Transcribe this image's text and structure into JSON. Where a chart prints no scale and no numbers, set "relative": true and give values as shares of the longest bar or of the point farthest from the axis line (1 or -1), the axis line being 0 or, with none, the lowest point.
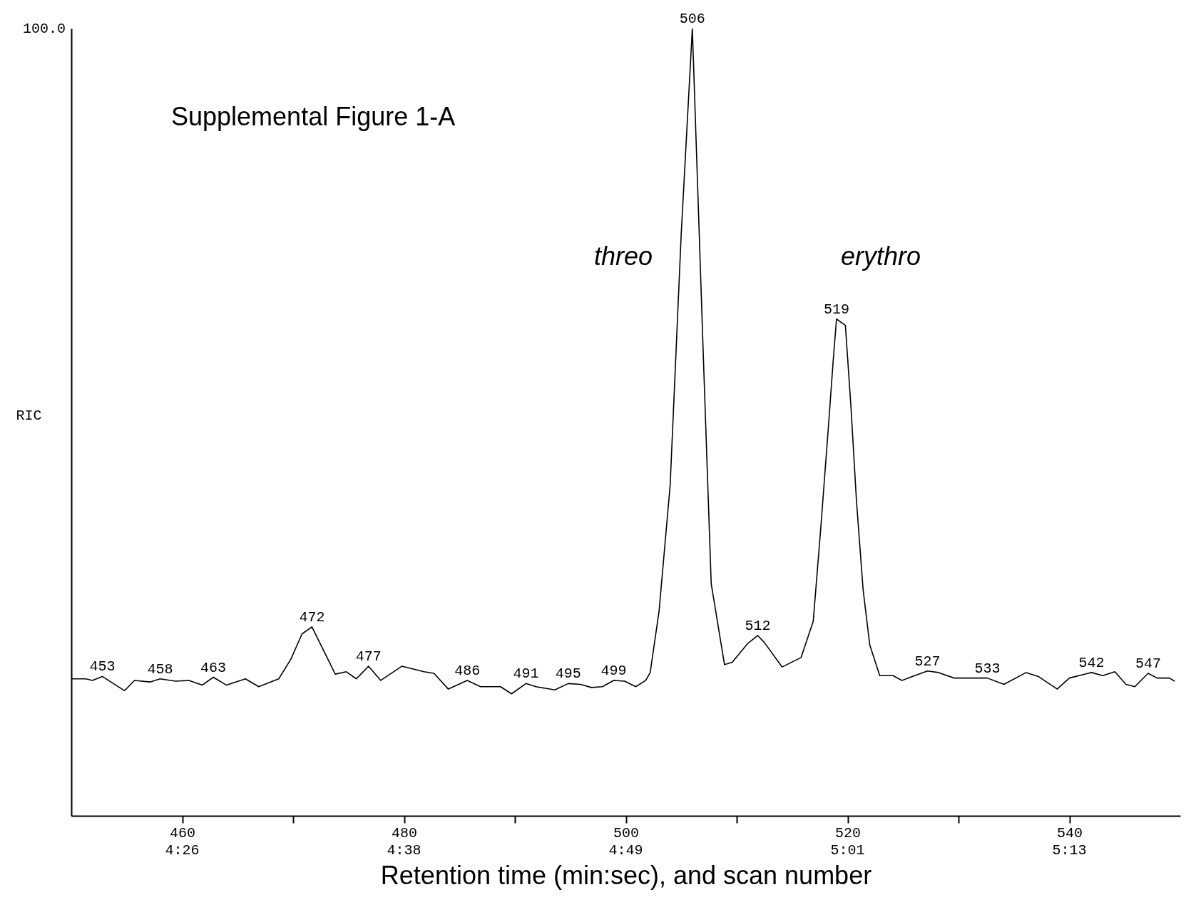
{
  "chart_data": {
    "type": "line",
    "relative": true,
    "xlabel": "Retention time (min:sec), and scan number",
    "ylabel": "RIC",
    "xlim": [
      450,
      550
    ],
    "xticks": [
      460,
      {
        "value": 470,
        "label": null
      },
      480,
      {
        "value": 490,
        "label": null
      },
      500,
      {
        "value": 510,
        "label": null
      },
      520,
      {
        "value": 530,
        "label": null
      },
      540
    ],
    "x": [
      450,
      451.3,
      451.9,
      452.8,
      454.8,
      455.7,
      457.1,
      458,
      459.4,
      460.6,
      461.8,
      462.8,
      464,
      465.7,
      466.9,
      468.7,
      469.8,
      470.8,
      471.7,
      473.8,
      474.8,
      475.7,
      476.8,
      477.9,
      479.8,
      481.8,
      482.7,
      484,
      485.7,
      486.9,
      488.7,
      489.7,
      491,
      491.9,
      493.6,
      494.8,
      495.9,
      496.9,
      497.9,
      498.9,
      499.9,
      500.9,
      501.8,
      502.2,
      503,
      504,
      505,
      506,
      507,
      507.7,
      508.9,
      509.6,
      511,
      511.9,
      512.5,
      514.1,
      515.8,
      516.9,
      517.6,
      518.3,
      518.7,
      519,
      519.8,
      520.3,
      520.8,
      521.4,
      522,
      522.9,
      524.1,
      524.9,
      527.2,
      528.2,
      529.6,
      532.6,
      534.1,
      536.1,
      537.2,
      538.9,
      540,
      542,
      543,
      544.1,
      545.1,
      545.9,
      547.1,
      547.9,
      549,
      549.5
    ],
    "series": [
      {
        "color": "#000000",
        "values": [
          0.174,
          0.174,
          0.172,
          0.177,
          0.159,
          0.172,
          0.17,
          0.174,
          0.171,
          0.172,
          0.166,
          0.176,
          0.166,
          0.174,
          0.164,
          0.174,
          0.199,
          0.231,
          0.24,
          0.18,
          0.183,
          0.174,
          0.19,
          0.172,
          0.19,
          0.183,
          0.181,
          0.161,
          0.172,
          0.164,
          0.164,
          0.155,
          0.168,
          0.164,
          0.16,
          0.168,
          0.167,
          0.163,
          0.164,
          0.172,
          0.171,
          0.164,
          0.172,
          0.182,
          0.26,
          0.42,
          0.74,
          1.0,
          0.58,
          0.295,
          0.192,
          0.195,
          0.219,
          0.229,
          0.22,
          0.189,
          0.201,
          0.247,
          0.369,
          0.5,
          0.578,
          0.631,
          0.623,
          0.52,
          0.4,
          0.287,
          0.217,
          0.178,
          0.178,
          0.172,
          0.184,
          0.182,
          0.175,
          0.175,
          0.167,
          0.182,
          0.177,
          0.161,
          0.175,
          0.182,
          0.178,
          0.183,
          0.167,
          0.164,
          0.181,
          0.175,
          0.175,
          0.171
        ]
      }
    ],
    "line_style": "solid",
    "marker": "none",
    "grid": false,
    "annotations": [
      "Supplemental Figure 1-A",
      "100.0",
      "threo",
      "erythro",
      "4:26",
      "4:38",
      "4:49",
      "5:01",
      "5:13",
      {
        "text": "453",
        "x": 452.8,
        "y": 0.177
      },
      {
        "text": "458",
        "x": 458,
        "y": 0.174
      },
      {
        "text": "463",
        "x": 462.8,
        "y": 0.176
      },
      {
        "text": "472",
        "x": 471.7,
        "y": 0.24
      },
      {
        "text": "477",
        "x": 476.8,
        "y": 0.19
      },
      {
        "text": "486",
        "x": 485.7,
        "y": 0.172
      },
      {
        "text": "491",
        "x": 491,
        "y": 0.168
      },
      {
        "text": "495",
        "x": 494.8,
        "y": 0.168
      },
      {
        "text": "499",
        "x": 498.9,
        "y": 0.172
      },
      {
        "text": "506",
        "x": 506,
        "y": 1.0
      },
      {
        "text": "512",
        "x": 511.9,
        "y": 0.229
      },
      {
        "text": "519",
        "x": 519,
        "y": 0.631
      },
      {
        "text": "527",
        "x": 527.2,
        "y": 0.184
      },
      {
        "text": "533",
        "x": 532.6,
        "y": 0.175
      },
      {
        "text": "542",
        "x": 542,
        "y": 0.182
      },
      {
        "text": "547",
        "x": 547.1,
        "y": 0.181
      }
    ]
  }
}
